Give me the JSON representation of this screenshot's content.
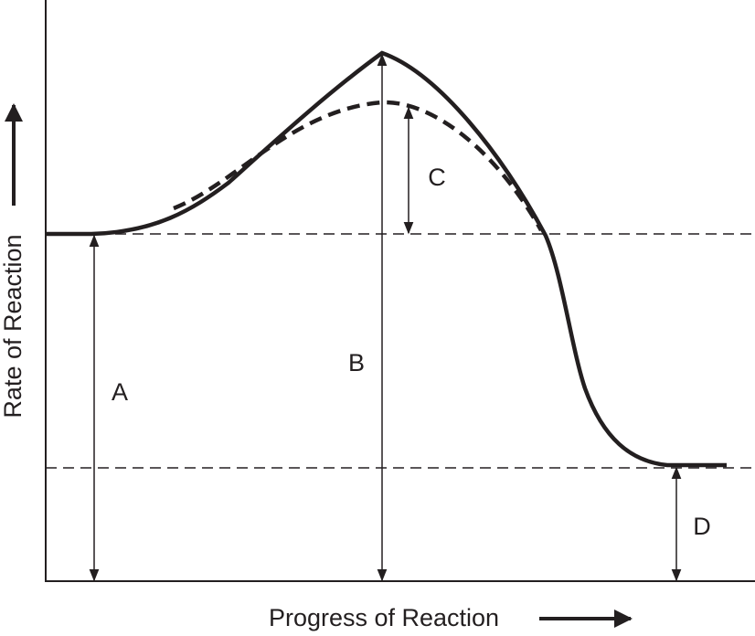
{
  "axes": {
    "y_label": "Rate of Reaction",
    "x_label": "Progress of Reaction"
  },
  "labels": [
    "A",
    "B",
    "C",
    "D"
  ]
}
